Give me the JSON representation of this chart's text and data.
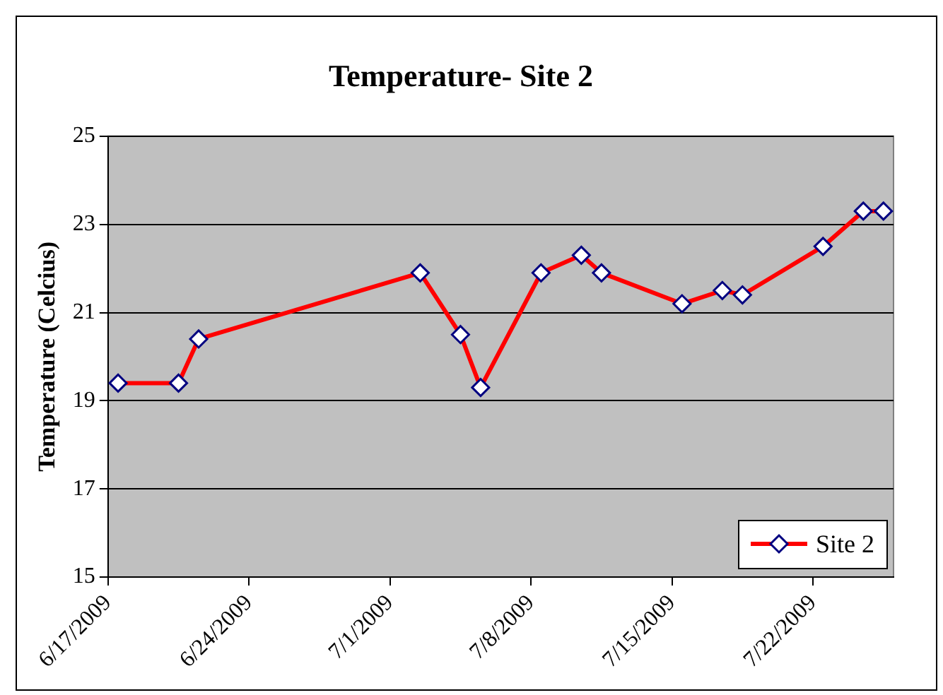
{
  "chart_data": {
    "type": "line",
    "title": "Temperature- Site 2",
    "ylabel": "Temperature (Celcius)",
    "x": [
      "2009-06-17T12:00",
      "2009-06-20T12:00",
      "2009-06-21T12:00",
      "2009-07-02T12:00",
      "2009-07-04T12:00",
      "2009-07-05T12:00",
      "2009-07-08T12:00",
      "2009-07-10T12:00",
      "2009-07-11T12:00",
      "2009-07-15T12:00",
      "2009-07-17T12:00",
      "2009-07-18T12:00",
      "2009-07-22T12:00",
      "2009-07-24T12:00",
      "2009-07-25T12:00"
    ],
    "series": [
      {
        "name": "Site 2",
        "color": "#ff0000",
        "values": [
          19.4,
          19.4,
          20.4,
          21.9,
          20.5,
          19.3,
          21.9,
          22.3,
          21.9,
          21.2,
          21.5,
          21.4,
          22.5,
          23.3,
          23.3
        ]
      }
    ],
    "xlim": [
      "2009-06-17",
      "2009-07-26"
    ],
    "xticks": [
      {
        "value": "2009-06-17",
        "label": "6/17/2009"
      },
      {
        "value": "2009-06-24",
        "label": "6/24/2009"
      },
      {
        "value": "2009-07-01",
        "label": "7/1/2009"
      },
      {
        "value": "2009-07-08",
        "label": "7/8/2009"
      },
      {
        "value": "2009-07-15",
        "label": "7/15/2009"
      },
      {
        "value": "2009-07-22",
        "label": "7/22/2009"
      }
    ],
    "ylim": [
      15,
      25
    ],
    "yticks": [
      15,
      17,
      19,
      21,
      23,
      25
    ],
    "grid": "y",
    "legend": "bottom right",
    "marker": "diamond",
    "line_style": "solid"
  }
}
